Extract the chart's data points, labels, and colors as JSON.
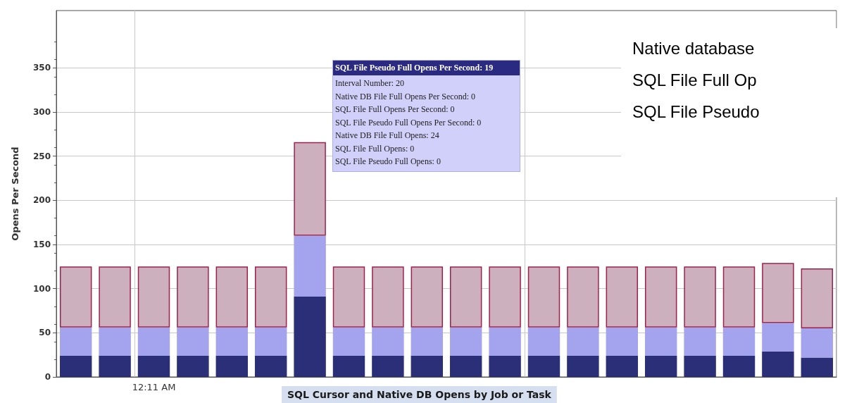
{
  "chart_data": {
    "type": "bar",
    "stacked": true,
    "title": "SQL Cursor and Native DB Opens by Job or Task",
    "ylabel": "Opens Per Second",
    "categories": [
      null,
      null,
      "12:11 AM",
      null,
      null,
      null,
      null,
      null,
      null,
      null,
      null,
      null,
      null,
      null,
      null,
      null,
      null,
      null,
      null,
      null
    ],
    "series": [
      {
        "color": "#2b2f78",
        "values": [
          24,
          24,
          24,
          24,
          24,
          24,
          91,
          24,
          24,
          24,
          24,
          24,
          24,
          24,
          24,
          24,
          24,
          24,
          29,
          22
        ]
      },
      {
        "color": "#a3a3ee",
        "values": [
          32,
          32,
          32,
          32,
          32,
          32,
          69,
          32,
          32,
          32,
          32,
          32,
          32,
          32,
          32,
          32,
          32,
          32,
          32,
          33
        ]
      },
      {
        "color": "#cdb0bd",
        "values": [
          69,
          69,
          69,
          69,
          69,
          69,
          106,
          69,
          69,
          69,
          69,
          69,
          69,
          69,
          69,
          69,
          69,
          69,
          68,
          68
        ]
      }
    ],
    "ylim": [
      0,
      415
    ],
    "yticks": [
      0,
      50,
      100,
      150,
      200,
      250,
      300,
      350
    ],
    "grid": true,
    "annotations": [
      "SQL File Pseudo Full Opens Per Second: 19",
      "Interval Number: 20",
      "Native DB File Full Opens Per Second: 0",
      "SQL File Full Opens Per Second: 0",
      "SQL File Pseudo Full Opens Per Second: 0",
      "Native DB File Full Opens: 24",
      "SQL File Full Opens: 0",
      "SQL File Pseudo Full Opens: 0",
      "Native database",
      "SQL File Full Op",
      "SQL File Pseudo"
    ]
  }
}
